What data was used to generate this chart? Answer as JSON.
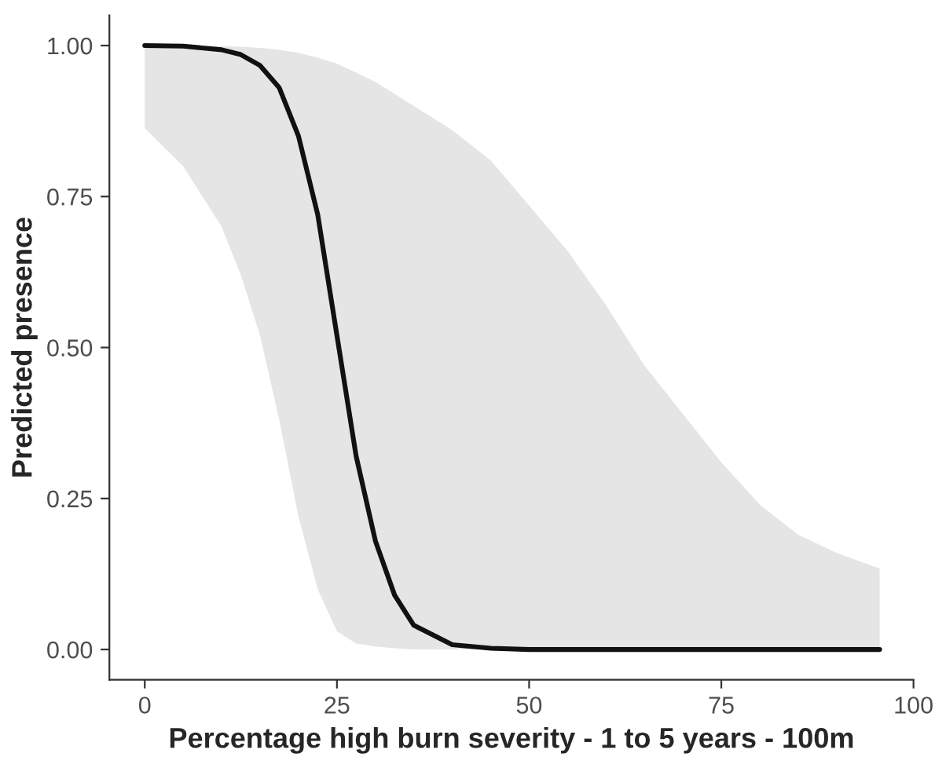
{
  "chart_data": {
    "type": "line",
    "xlabel": "Percentage high burn severity - 1 to 5 years - 100m",
    "ylabel": "Predicted presence",
    "x": [
      0,
      5,
      10,
      12.5,
      15,
      17.5,
      20,
      22.5,
      25,
      27.5,
      30,
      32.5,
      35,
      40,
      45,
      50,
      55,
      60,
      65,
      70,
      75,
      80,
      85,
      90,
      95.6
    ],
    "series": [
      {
        "color": "#111111",
        "values": [
          1.0,
          0.999,
          0.993,
          0.985,
          0.967,
          0.93,
          0.85,
          0.72,
          0.52,
          0.32,
          0.18,
          0.09,
          0.04,
          0.008,
          0.002,
          0,
          0,
          0,
          0,
          0,
          0,
          0,
          0,
          0,
          0
        ],
        "lower": [
          0.863,
          0.8,
          0.7,
          0.62,
          0.52,
          0.38,
          0.22,
          0.1,
          0.03,
          0.01,
          0.005,
          0.002,
          0,
          0,
          0,
          0,
          0,
          0,
          0,
          0,
          0,
          0,
          0,
          0,
          0
        ],
        "upper": [
          1.0,
          1.0,
          0.999,
          0.998,
          0.996,
          0.993,
          0.988,
          0.98,
          0.97,
          0.955,
          0.94,
          0.92,
          0.9,
          0.86,
          0.81,
          0.735,
          0.66,
          0.57,
          0.47,
          0.39,
          0.31,
          0.24,
          0.19,
          0.16,
          0.134
        ]
      }
    ],
    "xlim": [
      -4.6,
      100
    ],
    "ylim": [
      -0.05,
      1.05
    ],
    "xticks": [
      0,
      25,
      50,
      75,
      100
    ],
    "yticks": [
      {
        "value": 0,
        "label": "0.00"
      },
      {
        "value": 0.25,
        "label": "0.25"
      },
      {
        "value": 0.5,
        "label": "0.50"
      },
      {
        "value": 0.75,
        "label": "0.75"
      },
      {
        "value": 1.0,
        "label": "1.00"
      }
    ],
    "grid": false,
    "legend": false,
    "line_style": "solid"
  }
}
